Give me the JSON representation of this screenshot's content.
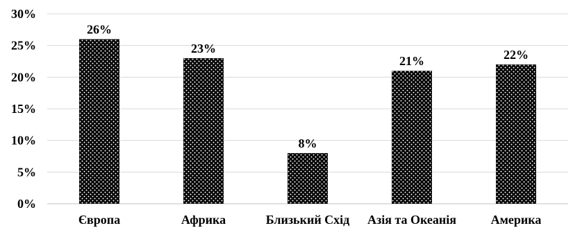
{
  "chart_data": {
    "type": "bar",
    "title": "",
    "xlabel": "",
    "ylabel": "",
    "categories": [
      "Європа",
      "Африка",
      "Близький Схід",
      "Азія та Океанія",
      "Америка"
    ],
    "values": [
      26,
      23,
      8,
      21,
      22
    ],
    "data_labels": [
      "26%",
      "23%",
      "8%",
      "21%",
      "22%"
    ],
    "ylim": [
      0,
      30
    ],
    "yticks": [
      0,
      5,
      10,
      15,
      20,
      25,
      30
    ],
    "ytick_labels": [
      "0%",
      "5%",
      "10%",
      "15%",
      "20%",
      "25%",
      "30%"
    ],
    "grid": true,
    "legend": "none",
    "bar_fill": "black-dotted-pattern",
    "colors": {
      "bar": "#000000",
      "dots": "#ffffff",
      "grid": "#d9d9d9",
      "text": "#000000"
    }
  }
}
